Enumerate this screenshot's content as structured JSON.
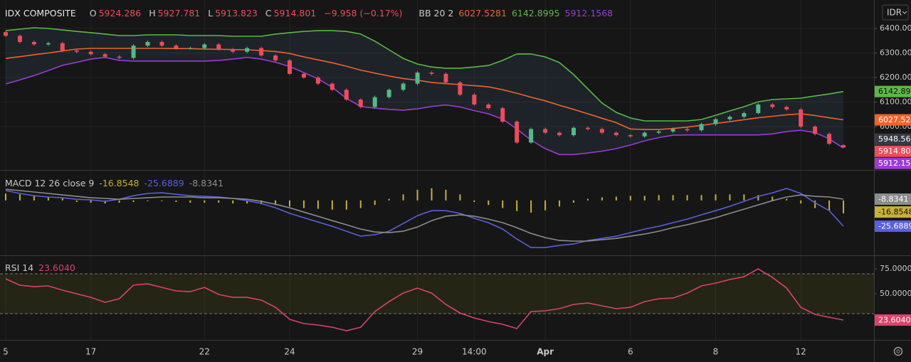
{
  "chart_data": [
    {
      "type": "candlestick",
      "title": "IDX COMPOSITE",
      "currency": "IDR",
      "change": "−9.958 (−0.17%)",
      "ohlc_letters": [
        "O",
        "H",
        "L",
        "C"
      ],
      "categories": [
        "5",
        null,
        null,
        null,
        null,
        null,
        "17",
        null,
        null,
        null,
        null,
        null,
        null,
        null,
        "22",
        null,
        null,
        null,
        null,
        null,
        "24",
        null,
        null,
        null,
        null,
        null,
        null,
        null,
        null,
        "29",
        null,
        null,
        null,
        "14:00",
        null,
        null,
        null,
        null,
        "Apr",
        null,
        null,
        null,
        null,
        null,
        "6",
        null,
        null,
        null,
        null,
        null,
        "8",
        null,
        null,
        null,
        null,
        null,
        "12",
        null,
        null,
        null
      ],
      "open": [
        6385,
        6370,
        6345,
        6335,
        6340,
        6310,
        6305,
        6295,
        6285,
        6280,
        6330,
        6345,
        6330,
        6320,
        6320,
        6335,
        6315,
        6305,
        6320,
        6290,
        6270,
        6215,
        6200,
        6175,
        6150,
        6110,
        6080,
        6120,
        6150,
        6175,
        6220,
        6215,
        6180,
        6130,
        6090,
        6075,
        6020,
        5935,
        5990,
        5975,
        5965,
        5995,
        5990,
        5975,
        5965,
        5960,
        5975,
        5980,
        5990,
        5985,
        6010,
        6030,
        6040,
        6055,
        6090,
        6080,
        6070,
        6000,
        5970,
        5924.286
      ],
      "high": [
        6391,
        6376,
        6351,
        6346,
        6346,
        6316,
        6311,
        6301,
        6291,
        6336,
        6351,
        6351,
        6336,
        6326,
        6341,
        6341,
        6321,
        6326,
        6326,
        6296,
        6276,
        6221,
        6206,
        6181,
        6156,
        6116,
        6126,
        6156,
        6181,
        6226,
        6226,
        6221,
        6186,
        6136,
        6096,
        6081,
        6026,
        5996,
        5996,
        5981,
        6001,
        6001,
        5996,
        5981,
        5971,
        5981,
        5986,
        5996,
        5996,
        6016,
        6036,
        6046,
        6061,
        6096,
        6096,
        6086,
        6076,
        6006,
        5976,
        5927.781
      ],
      "low": [
        6364,
        6339,
        6329,
        6329,
        6304,
        6299,
        6289,
        6279,
        6274,
        6274,
        6324,
        6324,
        6314,
        6314,
        6314,
        6309,
        6299,
        6299,
        6284,
        6264,
        6209,
        6194,
        6169,
        6144,
        6104,
        6074,
        6074,
        6114,
        6144,
        6169,
        6209,
        6174,
        6124,
        6084,
        6069,
        6014,
        5929,
        5929,
        5969,
        5959,
        5959,
        5984,
        5969,
        5959,
        5954,
        5954,
        5969,
        5974,
        5979,
        5979,
        6004,
        6024,
        6034,
        6049,
        6074,
        6064,
        5994,
        5964,
        5924,
        5913.823
      ],
      "close": [
        6370,
        6345,
        6335,
        6340,
        6310,
        6305,
        6295,
        6285,
        6280,
        6330,
        6345,
        6330,
        6320,
        6320,
        6335,
        6315,
        6305,
        6320,
        6290,
        6270,
        6215,
        6200,
        6175,
        6150,
        6110,
        6080,
        6120,
        6150,
        6175,
        6220,
        6215,
        6180,
        6130,
        6090,
        6075,
        6020,
        5935,
        5990,
        5975,
        5965,
        5995,
        5990,
        5975,
        5965,
        5960,
        5975,
        5980,
        5990,
        5985,
        6010,
        6030,
        6040,
        6055,
        6090,
        6080,
        6070,
        6000,
        5970,
        5930,
        5914.801
      ],
      "up_color": "#53b987",
      "down_color": "#eb4d5c",
      "indicator": {
        "title": "BB 20 2",
        "fill": "rgba(80,120,160,0.13)",
        "series": [
          {
            "color": "#f0622d",
            "values": [
              6278,
              6285,
              6293,
              6300,
              6308,
              6316,
              6319,
              6319,
              6319,
              6319,
              6319,
              6319,
              6318,
              6318,
              6316,
              6315,
              6314,
              6313,
              6310,
              6306,
              6298,
              6284,
              6272,
              6260,
              6246,
              6230,
              6218,
              6206,
              6196,
              6189,
              6180,
              6175,
              6171,
              6167,
              6162,
              6150,
              6136,
              6120,
              6105,
              6087,
              6070,
              6052,
              6034,
              6016,
              5990,
              5988,
              5988,
              5992,
              5998,
              6005,
              6013,
              6020,
              6028,
              6036,
              6042,
              6048,
              6052,
              6045,
              6036,
              6027.5281
            ]
          },
          {
            "color": "#5bb846",
            "values": [
              6391,
              6397,
              6403,
              6400,
              6394,
              6388,
              6383,
              6377,
              6371,
              6371,
              6374,
              6374,
              6374,
              6371,
              6371,
              6371,
              6368,
              6368,
              6368,
              6377,
              6383,
              6388,
              6391,
              6391,
              6388,
              6377,
              6348,
              6313,
              6278,
              6255,
              6243,
              6238,
              6238,
              6243,
              6249,
              6270,
              6296,
              6296,
              6284,
              6261,
              6212,
              6154,
              6096,
              6058,
              6035,
              6023,
              6023,
              6023,
              6023,
              6029,
              6046,
              6064,
              6081,
              6101,
              6110,
              6113,
              6116,
              6125,
              6133,
              6142.8995
            ]
          },
          {
            "color": "#9c3ad8",
            "values": [
              6174,
              6190,
              6208,
              6228,
              6250,
              6262,
              6275,
              6282,
              6270,
              6267,
              6267,
              6267,
              6267,
              6267,
              6267,
              6270,
              6275,
              6282,
              6275,
              6262,
              6245,
              6220,
              6195,
              6160,
              6115,
              6082,
              6075,
              6070,
              6067,
              6072,
              6082,
              6088,
              6080,
              6065,
              6052,
              6030,
              5990,
              5945,
              5910,
              5886,
              5886,
              5892,
              5900,
              5910,
              5925,
              5942,
              5955,
              5965,
              5966,
              5966,
              5966,
              5966,
              5966,
              5966,
              5970,
              5980,
              5985,
              5976,
              5950,
              5912.1568
            ]
          }
        ]
      },
      "extra_price_labels": [
        {
          "value": 5948.56,
          "color": "#363a45"
        }
      ],
      "ylim": [
        5826,
        6516
      ],
      "yticks": [
        {
          "value": 6000,
          "label": "6000.00"
        },
        {
          "value": 6100,
          "label": "6100.00"
        },
        {
          "value": 6200,
          "label": "6200.00"
        },
        {
          "value": 6300,
          "label": "6300.00"
        },
        {
          "value": 6400,
          "label": "6400.00"
        }
      ],
      "grid": true
    },
    {
      "type": "line",
      "title": "MACD 12 26 close 9",
      "ylim": [
        -43.4,
        8.9
      ],
      "y2lim": [
        -71,
        39
      ],
      "series": [
        {
          "color": "#c9b037",
          "kind": "bar",
          "axis": "y2",
          "values": [
            9,
            8,
            7,
            5,
            3,
            -2,
            -3,
            -4,
            -3,
            -2,
            -1,
            -1,
            -2,
            -3,
            -3,
            -3,
            -4,
            -4,
            -5,
            -6,
            -8,
            -10,
            -11,
            -12,
            -12,
            -10,
            -6,
            2,
            8,
            14,
            16,
            14,
            8,
            -2,
            -6,
            -10,
            -14,
            -16,
            -13,
            -8,
            -3,
            2,
            4,
            5,
            6,
            6,
            7,
            7,
            7,
            7,
            8,
            8,
            8,
            7,
            5,
            2,
            -4,
            -10,
            -13,
            -16.8548
          ]
        },
        {
          "color": "#5a5fdc",
          "values": [
            -3.5,
            -5.3,
            -6.7,
            -7.5,
            -8,
            -8.9,
            -9.3,
            -10.2,
            -8.9,
            -6.7,
            -5.3,
            -4.9,
            -5.8,
            -6.7,
            -7.1,
            -7.5,
            -8.4,
            -9.8,
            -11.5,
            -14.2,
            -17.7,
            -20.4,
            -23.1,
            -25.7,
            -28.8,
            -31.9,
            -31,
            -28.8,
            -24,
            -19.1,
            -16,
            -16,
            -17.7,
            -20.8,
            -23.5,
            -27.5,
            -33.7,
            -39,
            -39,
            -37.7,
            -36.8,
            -34.6,
            -33.3,
            -31.9,
            -29.7,
            -27.5,
            -25.7,
            -23.5,
            -21.3,
            -18.6,
            -16,
            -13.3,
            -10.2,
            -7.1,
            -4.9,
            -2.2,
            -5.3,
            -11.1,
            -16,
            -25.6889
          ]
        },
        {
          "color": "#8c8c8c",
          "values": [
            -2.7,
            -3.5,
            -4.4,
            -5.3,
            -6.2,
            -7.1,
            -8,
            -8.4,
            -8.9,
            -8.4,
            -8,
            -7.5,
            -7.5,
            -7.5,
            -8,
            -8,
            -8.4,
            -8.9,
            -10.2,
            -12,
            -14.2,
            -16.9,
            -19.5,
            -22.2,
            -24.8,
            -27.5,
            -29.3,
            -29.7,
            -28.8,
            -26.2,
            -22.2,
            -19.5,
            -18.6,
            -19.5,
            -21.3,
            -23.5,
            -26.6,
            -30.2,
            -32.8,
            -34.6,
            -35,
            -35,
            -34.1,
            -33.3,
            -31.9,
            -30.6,
            -28.8,
            -26.6,
            -24.8,
            -22.6,
            -20.4,
            -17.7,
            -15.1,
            -12.4,
            -9.8,
            -7.5,
            -6.2,
            -7.1,
            -7.5,
            -8.8341
          ]
        }
      ]
    },
    {
      "type": "line",
      "title": "RSI 14",
      "ylim": [
        3.6,
        87.9
      ],
      "yticks": [
        {
          "value": 50,
          "label": "50.0000"
        },
        {
          "value": 75,
          "label": "75.0000"
        }
      ],
      "band": [
        30,
        70
      ],
      "band_color": "rgba(120,120,20,0.16)",
      "last_label": "23.6040",
      "series": [
        {
          "color": "#d9436b",
          "values": [
            65,
            58.6,
            57.1,
            57.9,
            53.6,
            50,
            46.4,
            41.4,
            45,
            58.6,
            60,
            56.4,
            52.9,
            52.1,
            56.4,
            49.3,
            46.4,
            46.4,
            43.6,
            36.4,
            24.3,
            20,
            18.6,
            16.4,
            12.9,
            16.4,
            32.1,
            42.1,
            50.7,
            55.7,
            50.7,
            39.3,
            30.7,
            25.7,
            22.1,
            19.3,
            15,
            32.1,
            32.9,
            35,
            39.3,
            40.7,
            37.9,
            35,
            36.4,
            42.1,
            45,
            45.7,
            50.7,
            57.9,
            60.7,
            64.3,
            67.1,
            75,
            66.4,
            55.7,
            36.4,
            29.3,
            26.4,
            23.604
          ]
        }
      ]
    }
  ]
}
